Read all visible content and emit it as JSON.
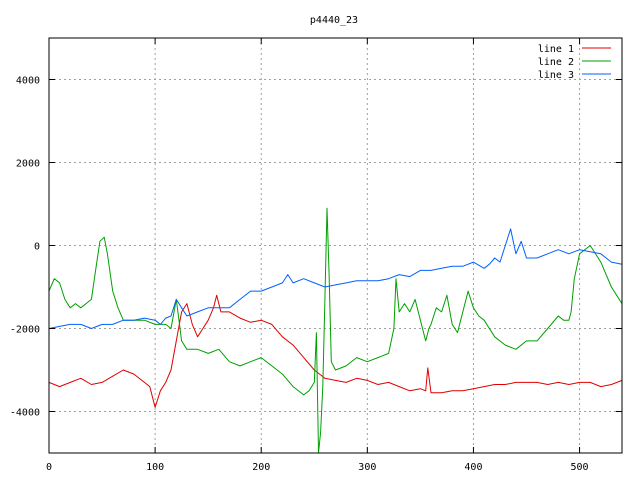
{
  "chart_data": {
    "type": "line",
    "title": "p4440_23",
    "xlabel": "",
    "ylabel": "",
    "xlim": [
      0,
      540
    ],
    "ylim": [
      -5000,
      5000
    ],
    "xticks": [
      0,
      100,
      200,
      300,
      400,
      500
    ],
    "yticks": [
      -4000,
      -2000,
      0,
      2000,
      4000
    ],
    "grid": true,
    "legend_position": "top-right",
    "series": [
      {
        "name": "line 1",
        "color": "#e00000",
        "points": [
          [
            0,
            -3300
          ],
          [
            10,
            -3400
          ],
          [
            20,
            -3300
          ],
          [
            30,
            -3200
          ],
          [
            40,
            -3350
          ],
          [
            50,
            -3300
          ],
          [
            60,
            -3150
          ],
          [
            70,
            -3000
          ],
          [
            80,
            -3100
          ],
          [
            90,
            -3300
          ],
          [
            95,
            -3400
          ],
          [
            100,
            -3900
          ],
          [
            105,
            -3500
          ],
          [
            110,
            -3300
          ],
          [
            115,
            -3000
          ],
          [
            120,
            -2300
          ],
          [
            125,
            -1600
          ],
          [
            130,
            -1400
          ],
          [
            135,
            -1900
          ],
          [
            140,
            -2200
          ],
          [
            145,
            -2000
          ],
          [
            150,
            -1800
          ],
          [
            155,
            -1500
          ],
          [
            158,
            -1200
          ],
          [
            162,
            -1600
          ],
          [
            170,
            -1600
          ],
          [
            180,
            -1750
          ],
          [
            190,
            -1850
          ],
          [
            200,
            -1800
          ],
          [
            210,
            -1900
          ],
          [
            220,
            -2200
          ],
          [
            230,
            -2400
          ],
          [
            240,
            -2700
          ],
          [
            250,
            -3000
          ],
          [
            255,
            -3100
          ],
          [
            260,
            -3200
          ],
          [
            270,
            -3250
          ],
          [
            280,
            -3300
          ],
          [
            290,
            -3200
          ],
          [
            300,
            -3250
          ],
          [
            310,
            -3350
          ],
          [
            320,
            -3300
          ],
          [
            330,
            -3400
          ],
          [
            340,
            -3500
          ],
          [
            350,
            -3450
          ],
          [
            355,
            -3500
          ],
          [
            357,
            -2950
          ],
          [
            360,
            -3550
          ],
          [
            370,
            -3550
          ],
          [
            380,
            -3500
          ],
          [
            390,
            -3500
          ],
          [
            400,
            -3450
          ],
          [
            410,
            -3400
          ],
          [
            420,
            -3350
          ],
          [
            430,
            -3350
          ],
          [
            440,
            -3300
          ],
          [
            450,
            -3300
          ],
          [
            460,
            -3300
          ],
          [
            470,
            -3350
          ],
          [
            480,
            -3300
          ],
          [
            490,
            -3350
          ],
          [
            500,
            -3300
          ],
          [
            510,
            -3300
          ],
          [
            520,
            -3400
          ],
          [
            530,
            -3350
          ],
          [
            540,
            -3250
          ]
        ]
      },
      {
        "name": "line 2",
        "color": "#00a000",
        "points": [
          [
            0,
            -1100
          ],
          [
            5,
            -800
          ],
          [
            10,
            -900
          ],
          [
            15,
            -1300
          ],
          [
            20,
            -1500
          ],
          [
            25,
            -1400
          ],
          [
            30,
            -1500
          ],
          [
            35,
            -1400
          ],
          [
            40,
            -1300
          ],
          [
            45,
            -400
          ],
          [
            48,
            100
          ],
          [
            52,
            200
          ],
          [
            55,
            -200
          ],
          [
            60,
            -1100
          ],
          [
            65,
            -1500
          ],
          [
            70,
            -1800
          ],
          [
            80,
            -1800
          ],
          [
            90,
            -1800
          ],
          [
            100,
            -1900
          ],
          [
            110,
            -1900
          ],
          [
            115,
            -2000
          ],
          [
            120,
            -1300
          ],
          [
            125,
            -2300
          ],
          [
            130,
            -2500
          ],
          [
            140,
            -2500
          ],
          [
            150,
            -2600
          ],
          [
            160,
            -2500
          ],
          [
            170,
            -2800
          ],
          [
            180,
            -2900
          ],
          [
            190,
            -2800
          ],
          [
            200,
            -2700
          ],
          [
            210,
            -2900
          ],
          [
            220,
            -3100
          ],
          [
            230,
            -3400
          ],
          [
            240,
            -3600
          ],
          [
            245,
            -3500
          ],
          [
            250,
            -3300
          ],
          [
            252,
            -2100
          ],
          [
            254,
            -5000
          ],
          [
            256,
            -4500
          ],
          [
            258,
            -3400
          ],
          [
            260,
            -1300
          ],
          [
            262,
            900
          ],
          [
            264,
            -700
          ],
          [
            266,
            -2800
          ],
          [
            270,
            -3000
          ],
          [
            280,
            -2900
          ],
          [
            290,
            -2700
          ],
          [
            300,
            -2800
          ],
          [
            310,
            -2700
          ],
          [
            320,
            -2600
          ],
          [
            325,
            -2000
          ],
          [
            327,
            -800
          ],
          [
            330,
            -1600
          ],
          [
            335,
            -1400
          ],
          [
            340,
            -1600
          ],
          [
            345,
            -1300
          ],
          [
            350,
            -1800
          ],
          [
            355,
            -2300
          ],
          [
            358,
            -2000
          ],
          [
            360,
            -1900
          ],
          [
            365,
            -1500
          ],
          [
            370,
            -1600
          ],
          [
            375,
            -1200
          ],
          [
            380,
            -1900
          ],
          [
            385,
            -2100
          ],
          [
            390,
            -1600
          ],
          [
            395,
            -1100
          ],
          [
            400,
            -1500
          ],
          [
            405,
            -1700
          ],
          [
            410,
            -1800
          ],
          [
            420,
            -2200
          ],
          [
            430,
            -2400
          ],
          [
            440,
            -2500
          ],
          [
            450,
            -2300
          ],
          [
            460,
            -2300
          ],
          [
            470,
            -2000
          ],
          [
            480,
            -1700
          ],
          [
            485,
            -1800
          ],
          [
            490,
            -1800
          ],
          [
            492,
            -1600
          ],
          [
            495,
            -800
          ],
          [
            500,
            -200
          ],
          [
            510,
            0
          ],
          [
            520,
            -400
          ],
          [
            530,
            -1000
          ],
          [
            535,
            -1200
          ],
          [
            540,
            -1400
          ]
        ]
      },
      {
        "name": "line 3",
        "color": "#0060ff",
        "points": [
          [
            0,
            -2000
          ],
          [
            10,
            -1950
          ],
          [
            20,
            -1900
          ],
          [
            30,
            -1900
          ],
          [
            40,
            -2000
          ],
          [
            50,
            -1900
          ],
          [
            60,
            -1900
          ],
          [
            70,
            -1800
          ],
          [
            80,
            -1800
          ],
          [
            90,
            -1750
          ],
          [
            100,
            -1800
          ],
          [
            105,
            -1900
          ],
          [
            110,
            -1750
          ],
          [
            115,
            -1700
          ],
          [
            120,
            -1300
          ],
          [
            125,
            -1500
          ],
          [
            130,
            -1700
          ],
          [
            140,
            -1600
          ],
          [
            150,
            -1500
          ],
          [
            160,
            -1500
          ],
          [
            170,
            -1500
          ],
          [
            180,
            -1300
          ],
          [
            190,
            -1100
          ],
          [
            200,
            -1100
          ],
          [
            210,
            -1000
          ],
          [
            220,
            -900
          ],
          [
            225,
            -700
          ],
          [
            230,
            -900
          ],
          [
            240,
            -800
          ],
          [
            250,
            -900
          ],
          [
            260,
            -1000
          ],
          [
            270,
            -950
          ],
          [
            280,
            -900
          ],
          [
            290,
            -850
          ],
          [
            300,
            -850
          ],
          [
            310,
            -850
          ],
          [
            320,
            -800
          ],
          [
            330,
            -700
          ],
          [
            340,
            -750
          ],
          [
            350,
            -600
          ],
          [
            360,
            -600
          ],
          [
            370,
            -550
          ],
          [
            380,
            -500
          ],
          [
            390,
            -500
          ],
          [
            400,
            -400
          ],
          [
            410,
            -550
          ],
          [
            415,
            -450
          ],
          [
            420,
            -300
          ],
          [
            425,
            -400
          ],
          [
            430,
            0
          ],
          [
            435,
            400
          ],
          [
            440,
            -200
          ],
          [
            445,
            100
          ],
          [
            450,
            -300
          ],
          [
            460,
            -300
          ],
          [
            470,
            -200
          ],
          [
            480,
            -100
          ],
          [
            490,
            -200
          ],
          [
            500,
            -100
          ],
          [
            510,
            -150
          ],
          [
            520,
            -200
          ],
          [
            530,
            -400
          ],
          [
            540,
            -450
          ]
        ]
      }
    ]
  }
}
